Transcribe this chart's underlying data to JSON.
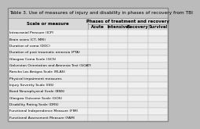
{
  "title": "Table 3. Use of measures of injury and disability in phases of recovery from TBI",
  "col_header1": "Scale or measure",
  "col_header2": "Phases of treatment and recovery",
  "sub_headers": [
    "Acute",
    "Intensive",
    "Recovery",
    "Survival"
  ],
  "rows": [
    "Intracranial Pressure (ICP)",
    "Brain scans (CT, MRI)",
    "Duration of coma (DOC)",
    "Duration of post traumatic amnesia (PTA)",
    "Glasgow Coma Scale (GCS)",
    "Galveston Orientation and Amnesia Test (GOAT)",
    "Rancho Los Amigos Scale (RLAS)",
    "Physical impairment measures",
    "Injury Severity Scale (ISS)",
    "Bond Neurophysical Scale (BNS)",
    "Glasgow Outcome Scale (GOS)",
    "Disability Rating Scale (DRS)",
    "Functional Independence Measure (FIM)",
    "Functional Assessment Measure (FAM)"
  ],
  "title_bg": "#c8c8c8",
  "header_bg": "#d8d8d8",
  "odd_row_bg": "#f0f0f0",
  "even_row_bg": "#e8e8e8",
  "border_color": "#888888",
  "grid_color": "#bbbbbb",
  "title_fontsize": 4.2,
  "header_fontsize": 4.0,
  "subheader_fontsize": 3.8,
  "row_fontsize": 3.2,
  "fig_bg": "#bbbbbb"
}
